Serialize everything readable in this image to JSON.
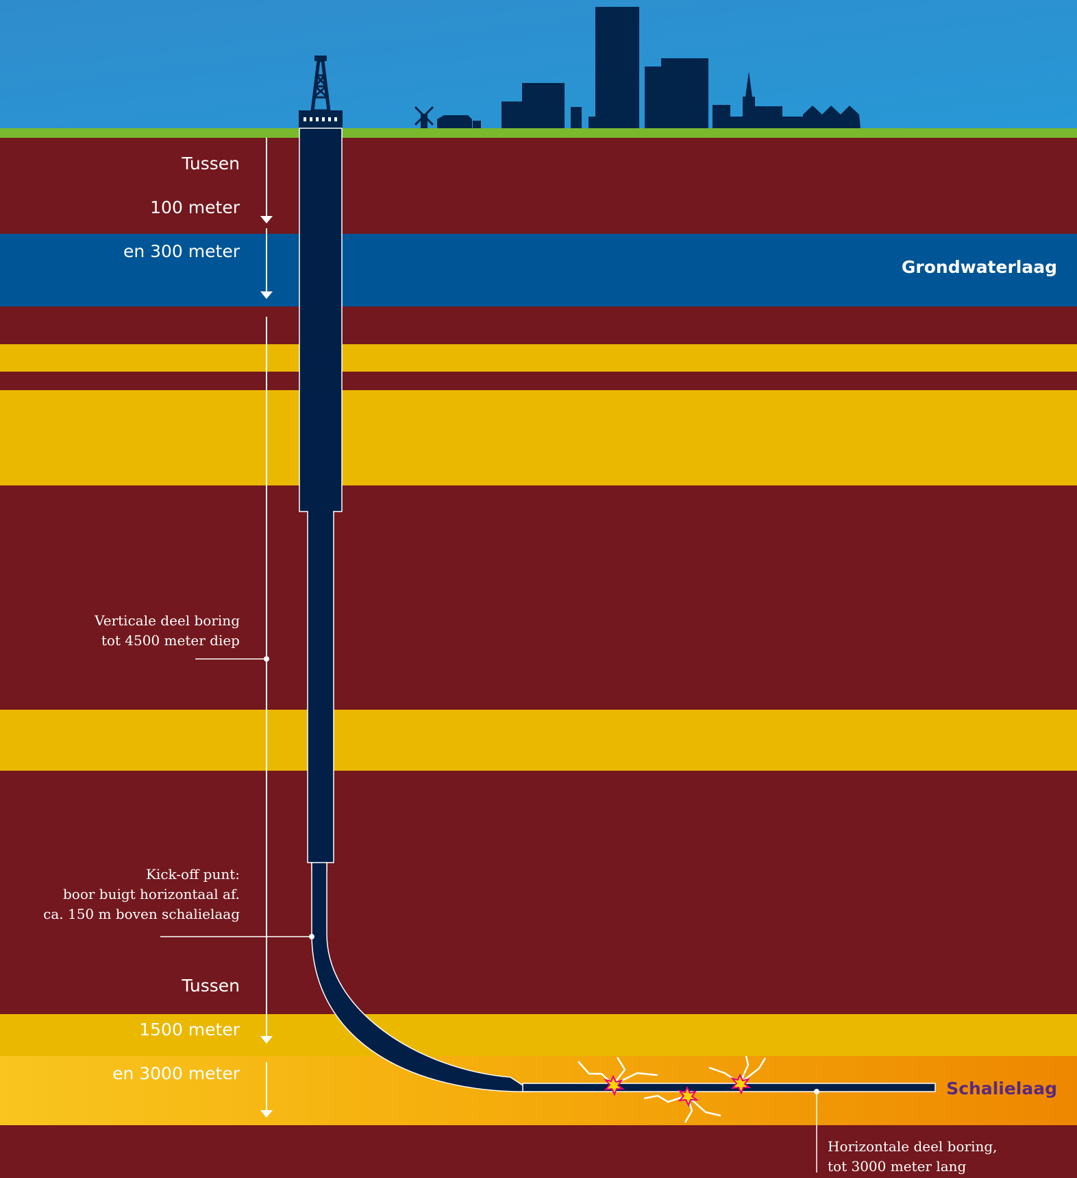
{
  "depth_labels": {
    "top": [
      "Tussen",
      "100 meter",
      "en 300 meter"
    ],
    "bottom": [
      "Tussen",
      "1500 meter",
      "en 3000 meter"
    ]
  },
  "layers": {
    "groundwater": "Grondwaterlaag",
    "shale": "Schalielaag"
  },
  "annotations": {
    "vertical": [
      "Verticale deel boring",
      "tot 4500 meter diep"
    ],
    "kickoff": [
      "Kick-off punt:",
      "boor buigt horizontaal af.",
      "ca. 150 m boven schalielaag"
    ],
    "horizontal": [
      "Horizontale deel boring,",
      "tot 3000 meter lang"
    ]
  },
  "colors": {
    "sky": "#2a8fd0",
    "grass": "#7ab82e",
    "rock": "#72181e",
    "groundwater": "#005597",
    "sandstone": "#ebb800",
    "shale_start": "#f9c51e",
    "shale_end": "#ee8a00",
    "well": "#001f47",
    "shale_label": "#5b2a7d"
  }
}
